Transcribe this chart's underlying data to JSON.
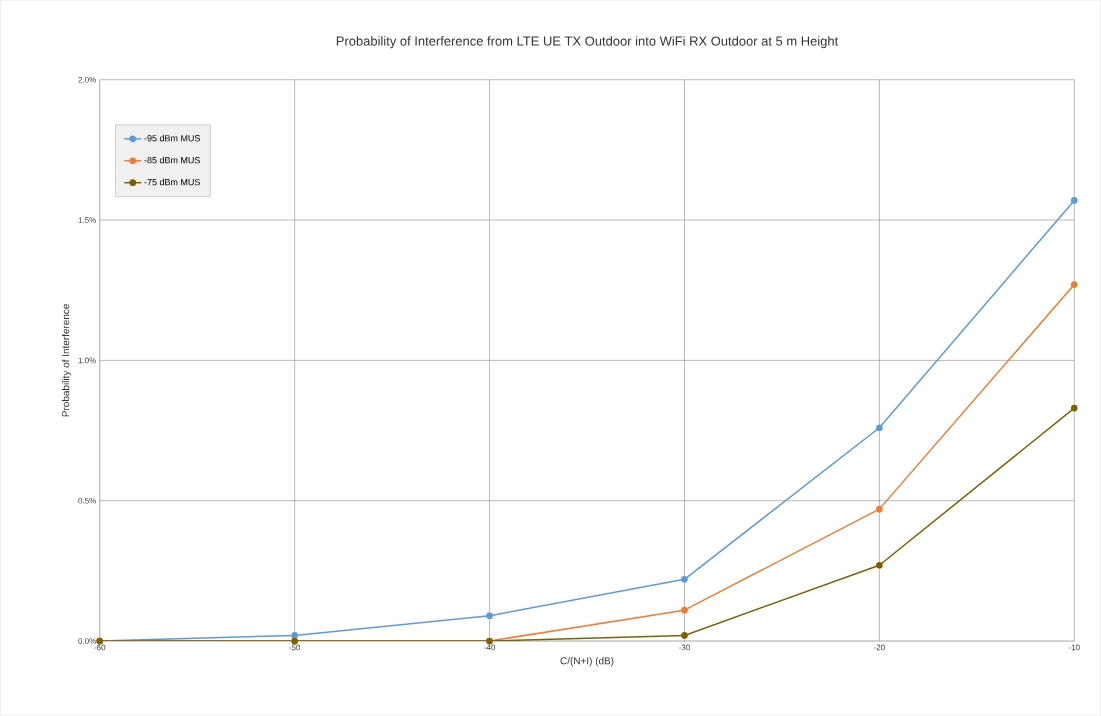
{
  "chart_data": {
    "type": "line",
    "title": "Probability of Interference from LTE UE TX Outdoor into WiFi RX Outdoor at 5 m Height",
    "xlabel": "C/(N+I)  (dB)",
    "ylabel": "Probability of Interference",
    "x": [
      -60,
      -50,
      -40,
      -30,
      -20,
      -10
    ],
    "series": [
      {
        "name": "-95 dBm MUS",
        "color": "#5b9bd5",
        "values": [
          0,
          0.02,
          0.09,
          0.22,
          0.76,
          1.57
        ]
      },
      {
        "name": "-85 dBm MUS",
        "color": "#ed7d31",
        "values": [
          0,
          0,
          0,
          0.11,
          0.47,
          1.27
        ]
      },
      {
        "name": "-75 dBm MUS",
        "color": "#7f6000",
        "values": [
          0,
          0,
          0,
          0.02,
          0.27,
          0.83
        ]
      }
    ],
    "xlim": [
      -60,
      -10
    ],
    "xticks": [
      -60,
      -50,
      -40,
      -30,
      -20,
      -10
    ],
    "ylim": [
      0,
      2.0
    ],
    "yticks": [
      {
        "value": 0,
        "label": "0.0%"
      },
      {
        "value": 0.5,
        "label": "0.5%"
      },
      {
        "value": 1.0,
        "label": "1.0%"
      },
      {
        "value": 1.5,
        "label": "1.5%"
      },
      {
        "value": 2.0,
        "label": "2.0%"
      }
    ],
    "grid": true,
    "legend": "top left",
    "marker": "circle",
    "line_style": "solid"
  }
}
